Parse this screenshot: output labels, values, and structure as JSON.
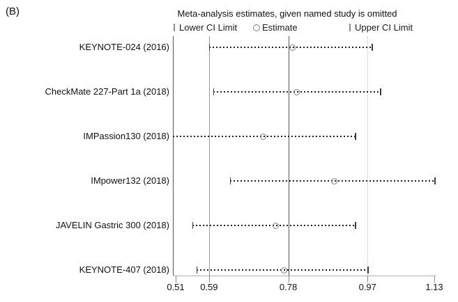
{
  "panel_label": "(B)",
  "title": "Meta-analysis estimates, given named study is omitted",
  "legend": {
    "lower": "Lower CI Limit",
    "estimate": "Estimate",
    "upper": "Upper CI Limit"
  },
  "chart_data": {
    "type": "scatter",
    "subtype": "leave-one-out-forest-plot",
    "orientation": "horizontal",
    "title": "Meta-analysis estimates, given named study is omitted",
    "xlim": [
      0.51,
      1.13
    ],
    "x_tick_labels": [
      "0.51",
      "0.59",
      "0.78",
      "0.97",
      "1.13"
    ],
    "x_tick_values": [
      0.51,
      0.59,
      0.78,
      0.97,
      1.13
    ],
    "reference_lines": {
      "lower_ci": 0.59,
      "estimate": 0.78,
      "upper_ci": 0.97
    },
    "grid": "vertical-reference-lines-only",
    "legend_position": "top",
    "series": [
      {
        "study": "KEYNOTE-024 (2016)",
        "lower": 0.59,
        "estimate": 0.79,
        "upper": 0.98,
        "lower_clipped": false,
        "upper_clipped": false
      },
      {
        "study": "CheckMate 227-Part 1a (2018)",
        "lower": 0.6,
        "estimate": 0.8,
        "upper": 1.0,
        "lower_clipped": false,
        "upper_clipped": false
      },
      {
        "study": "IMPassion130 (2018)",
        "lower": 0.5,
        "estimate": 0.72,
        "upper": 0.94,
        "lower_clipped": true,
        "upper_clipped": false
      },
      {
        "study": "IMpower132 (2018)",
        "lower": 0.64,
        "estimate": 0.89,
        "upper": 1.13,
        "lower_clipped": false,
        "upper_clipped": false
      },
      {
        "study": "JAVELIN Gastric 300 (2018)",
        "lower": 0.55,
        "estimate": 0.75,
        "upper": 0.94,
        "lower_clipped": false,
        "upper_clipped": false
      },
      {
        "study": "KEYNOTE-407 (2018)",
        "lower": 0.56,
        "estimate": 0.77,
        "upper": 0.97,
        "lower_clipped": false,
        "upper_clipped": false
      }
    ]
  },
  "colors": {
    "background": "#ffffff",
    "text": "#111111",
    "y_axis": "#555555",
    "ref_line_lower": "#999999",
    "ref_line_estimate": "#555555",
    "ref_line_upper_dotted": "#c4c4c4",
    "x_axis_line": "#b3b3b3",
    "tick": "#8a8a8a",
    "ci_dots": "#1f1f1f",
    "ci_cap": "#3a3a3a",
    "estimate_circle": "#7d7d7d"
  }
}
